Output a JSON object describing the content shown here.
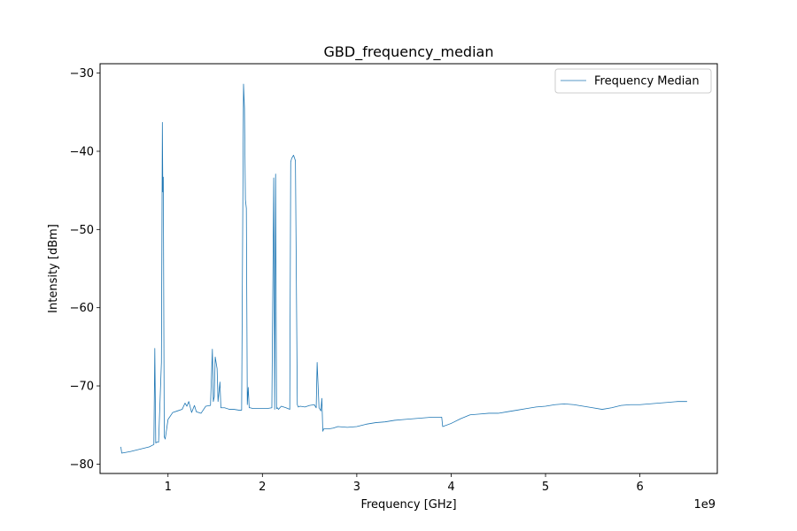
{
  "chart_data": {
    "type": "line",
    "title": "GBD_frequency_median",
    "xlabel": "Frequency [GHz]",
    "ylabel": "Intensity [dBm]",
    "x_offset_label": "1e9",
    "xlim": [
      0.28,
      6.82
    ],
    "ylim": [
      -81.2,
      -28.8
    ],
    "xticks": [
      1,
      2,
      3,
      4,
      5,
      6
    ],
    "xtick_labels": [
      "1",
      "2",
      "3",
      "4",
      "5",
      "6"
    ],
    "yticks": [
      -80,
      -70,
      -60,
      -50,
      -40,
      -30
    ],
    "ytick_labels": [
      "−80",
      "−70",
      "−60",
      "−50",
      "−40",
      "−30"
    ],
    "grid": false,
    "legend_position": "top-right",
    "color": "#1f77b4",
    "series": [
      {
        "name": "Frequency Median",
        "x": [
          0.5,
          0.51,
          0.6,
          0.7,
          0.8,
          0.85,
          0.86,
          0.87,
          0.88,
          0.9,
          0.93,
          0.94,
          0.945,
          0.95,
          0.96,
          0.97,
          1.0,
          1.05,
          1.1,
          1.15,
          1.18,
          1.2,
          1.22,
          1.25,
          1.28,
          1.3,
          1.35,
          1.4,
          1.45,
          1.47,
          1.48,
          1.49,
          1.5,
          1.52,
          1.53,
          1.55,
          1.56,
          1.6,
          1.65,
          1.7,
          1.75,
          1.78,
          1.8,
          1.81,
          1.82,
          1.83,
          1.84,
          1.85,
          1.86,
          1.87,
          1.9,
          2.0,
          2.05,
          2.1,
          2.12,
          2.13,
          2.14,
          2.15,
          2.16,
          2.17,
          2.2,
          2.25,
          2.29,
          2.3,
          2.31,
          2.33,
          2.35,
          2.37,
          2.38,
          2.4,
          2.45,
          2.5,
          2.55,
          2.57,
          2.58,
          2.6,
          2.62,
          2.63,
          2.64,
          2.65,
          2.7,
          2.75,
          2.8,
          2.9,
          3.0,
          3.1,
          3.2,
          3.3,
          3.4,
          3.5,
          3.6,
          3.7,
          3.8,
          3.9,
          3.91,
          4.0,
          4.1,
          4.2,
          4.3,
          4.4,
          4.5,
          4.6,
          4.7,
          4.8,
          4.9,
          5.0,
          5.1,
          5.2,
          5.3,
          5.4,
          5.5,
          5.6,
          5.7,
          5.8,
          5.9,
          6.0,
          6.1,
          6.2,
          6.3,
          6.4,
          6.5
        ],
        "y": [
          -77.8,
          -78.6,
          -78.4,
          -78.1,
          -77.8,
          -77.5,
          -65.2,
          -77.3,
          -77.2,
          -77.2,
          -67.0,
          -36.3,
          -45.2,
          -43.3,
          -76.5,
          -76.8,
          -74.3,
          -73.4,
          -73.2,
          -73.0,
          -72.2,
          -72.6,
          -72.0,
          -73.4,
          -72.5,
          -73.3,
          -73.5,
          -72.6,
          -72.5,
          -65.3,
          -72.0,
          -71.4,
          -66.3,
          -67.8,
          -72.0,
          -69.5,
          -72.8,
          -72.8,
          -73.0,
          -73.0,
          -73.1,
          -73.1,
          -31.4,
          -34.5,
          -46.2,
          -47.3,
          -72.4,
          -70.2,
          -72.8,
          -72.8,
          -72.9,
          -72.9,
          -72.9,
          -72.8,
          -43.4,
          -73.0,
          -42.9,
          -72.9,
          -72.8,
          -73.0,
          -72.6,
          -72.8,
          -73.0,
          -41.4,
          -40.9,
          -40.5,
          -41.2,
          -72.4,
          -72.7,
          -72.6,
          -72.7,
          -72.5,
          -72.4,
          -72.8,
          -67.0,
          -72.8,
          -73.2,
          -71.6,
          -75.8,
          -75.5,
          -75.5,
          -75.4,
          -75.2,
          -75.3,
          -75.2,
          -74.9,
          -74.7,
          -74.6,
          -74.4,
          -74.3,
          -74.2,
          -74.1,
          -74.0,
          -74.0,
          -75.2,
          -74.8,
          -74.2,
          -73.7,
          -73.6,
          -73.5,
          -73.5,
          -73.3,
          -73.1,
          -72.9,
          -72.7,
          -72.6,
          -72.4,
          -72.3,
          -72.4,
          -72.6,
          -72.8,
          -73.0,
          -72.8,
          -72.5,
          -72.4,
          -72.4,
          -72.3,
          -72.2,
          -72.1,
          -72.0,
          -72.0
        ]
      }
    ]
  }
}
